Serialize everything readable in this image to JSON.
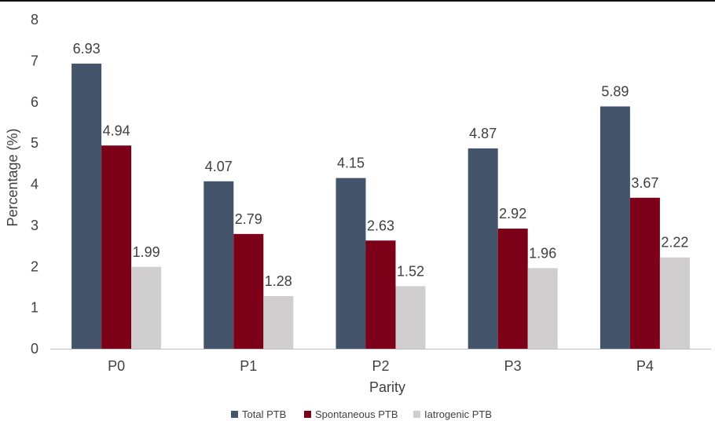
{
  "chart_data": {
    "type": "bar",
    "title": "",
    "xlabel": "Parity",
    "ylabel": "Percentage (%)",
    "ylim": [
      0,
      8
    ],
    "yticks": [
      0,
      1,
      2,
      3,
      4,
      5,
      6,
      7,
      8
    ],
    "grid": false,
    "legend_position": "bottom",
    "categories": [
      "P0",
      "P1",
      "P2",
      "P3",
      "P4"
    ],
    "series": [
      {
        "name": "Total PTB",
        "color": "#44546a",
        "values": [
          6.93,
          4.07,
          4.15,
          4.87,
          5.89
        ]
      },
      {
        "name": "Spontaneous PTB",
        "color": "#7b0018",
        "values": [
          4.94,
          2.79,
          2.63,
          2.92,
          3.67
        ]
      },
      {
        "name": "Iatrogenic PTB",
        "color": "#d0cece",
        "values": [
          1.99,
          1.28,
          1.52,
          1.96,
          2.22
        ]
      }
    ]
  }
}
